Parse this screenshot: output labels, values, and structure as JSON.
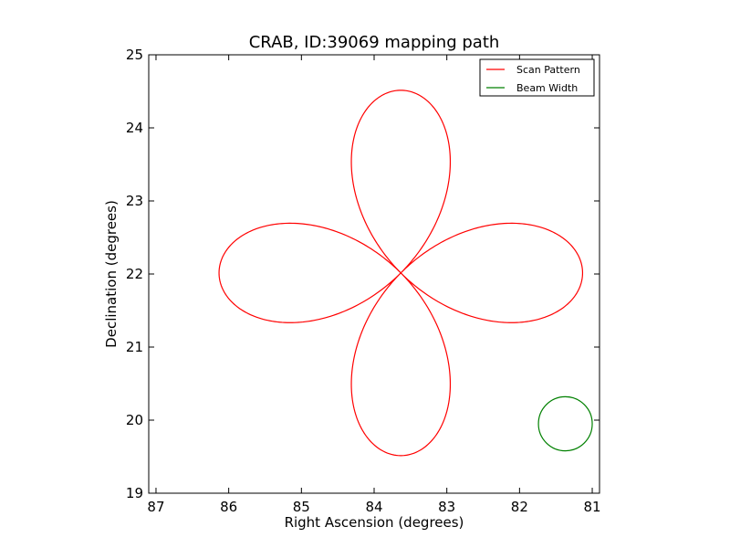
{
  "chart_data": {
    "type": "line",
    "title": "CRAB, ID:39069 mapping path",
    "xlabel": "Right Ascension (degrees)",
    "ylabel": "Declination (degrees)",
    "xlim": [
      87.1,
      80.9
    ],
    "ylim": [
      19,
      25
    ],
    "x_inverted": true,
    "xticks": [
      87,
      86,
      85,
      84,
      83,
      82,
      81
    ],
    "yticks": [
      19,
      20,
      21,
      22,
      23,
      24,
      25
    ],
    "grid": false,
    "legend_position": "top-right",
    "series": [
      {
        "name": "Scan Pattern",
        "color": "#ff0000",
        "pattern": "four-petal rose",
        "center": [
          83.633,
          22.0145
        ],
        "petal_extent_degrees": 2.5,
        "petal_half_width_degrees": 0.7
      },
      {
        "name": "Beam Width",
        "color": "#008000",
        "pattern": "circle",
        "center": [
          81.37,
          19.95
        ],
        "radius_degrees": 0.37
      }
    ]
  }
}
